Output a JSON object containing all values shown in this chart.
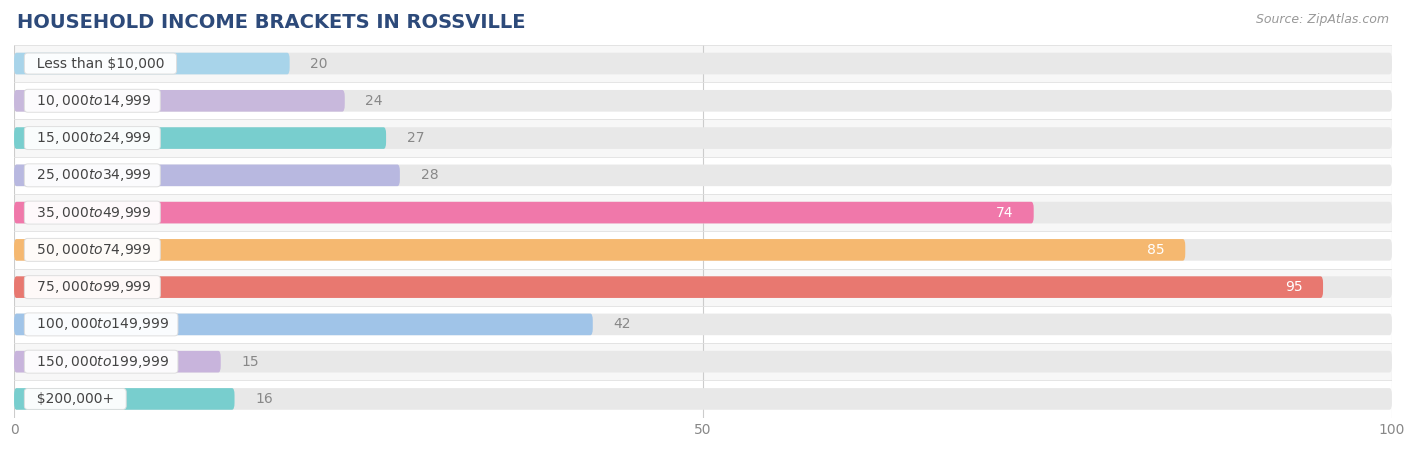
{
  "title": "HOUSEHOLD INCOME BRACKETS IN ROSSVILLE",
  "source": "Source: ZipAtlas.com",
  "categories": [
    "Less than $10,000",
    "$10,000 to $14,999",
    "$15,000 to $24,999",
    "$25,000 to $34,999",
    "$35,000 to $49,999",
    "$50,000 to $74,999",
    "$75,000 to $99,999",
    "$100,000 to $149,999",
    "$150,000 to $199,999",
    "$200,000+"
  ],
  "values": [
    20,
    24,
    27,
    28,
    74,
    85,
    95,
    42,
    15,
    16
  ],
  "bar_colors": [
    "#a8d4ea",
    "#c8b8dc",
    "#78cece",
    "#b8b8e0",
    "#f078aa",
    "#f5b870",
    "#e87870",
    "#a0c4e8",
    "#c8b4dc",
    "#78cece"
  ],
  "track_color": "#e8e8e8",
  "row_bg_even": "#f7f7f7",
  "row_bg_odd": "#ffffff",
  "label_inside": [
    "white",
    "white",
    "white"
  ],
  "value_label_color_inside": "white",
  "value_label_color_outside": "#888888",
  "value_inside_threshold": 50,
  "xlim_min": 0,
  "xlim_max": 100,
  "xticks": [
    0,
    50,
    100
  ],
  "title_color": "#2d4a7a",
  "title_fontsize": 14,
  "source_fontsize": 9,
  "category_fontsize": 10,
  "value_fontsize": 10,
  "bar_height": 0.58,
  "grid_color": "#cccccc",
  "spine_color": "#cccccc"
}
